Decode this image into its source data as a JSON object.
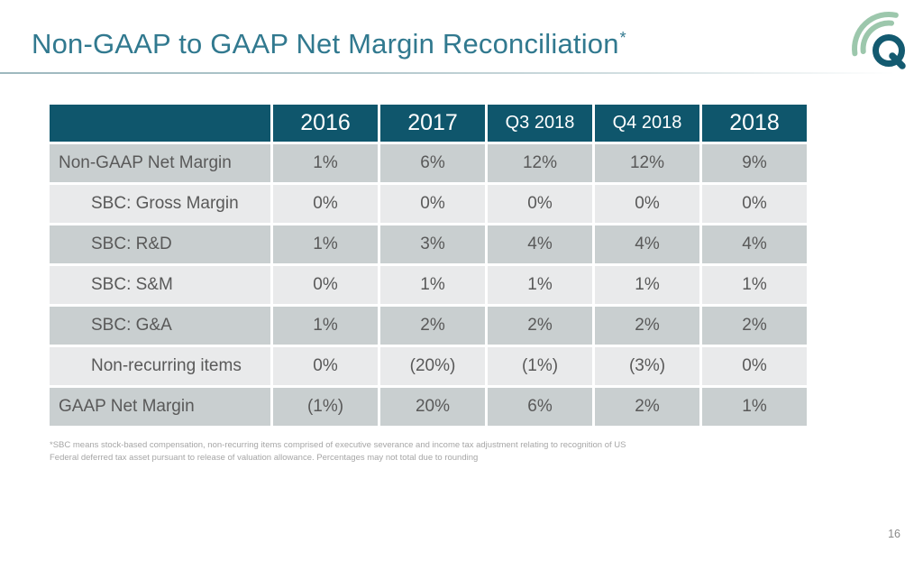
{
  "slide": {
    "title": "Non-GAAP to GAAP Net Margin Reconciliation",
    "title_superscript": "*",
    "page_number": "16",
    "footnote_lines": [
      "*SBC means stock-based compensation, non-recurring items comprised of executive severance and income tax adjustment relating to recognition of US",
      "Federal deferred tax asset pursuant to release of valuation allowance. Percentages may not total due to rounding"
    ],
    "logo": {
      "letter": "Q",
      "description": "letter Q with two radiating signal arcs"
    }
  },
  "colors": {
    "title_text": "#31798f",
    "header_bg": "#0f566c",
    "dark_row": "#c9cfd0",
    "light_row": "#e9eaeb",
    "body_text": "#595959",
    "footnote_text": "#a6a6a6",
    "logo_q_teal": "#135a70",
    "logo_arc_green": "#9cc7ac"
  },
  "chart_data": {
    "type": "table",
    "columns": [
      "",
      "2016",
      "2017",
      "Q3 2018",
      "Q4 2018",
      "2018"
    ],
    "rows": [
      {
        "label": "Non-GAAP Net Margin",
        "indent": false,
        "values": [
          "1%",
          "6%",
          "12%",
          "12%",
          "9%"
        ]
      },
      {
        "label": "SBC: Gross Margin",
        "indent": true,
        "values": [
          "0%",
          "0%",
          "0%",
          "0%",
          "0%"
        ]
      },
      {
        "label": "SBC: R&D",
        "indent": true,
        "values": [
          "1%",
          "3%",
          "4%",
          "4%",
          "4%"
        ]
      },
      {
        "label": "SBC: S&M",
        "indent": true,
        "values": [
          "0%",
          "1%",
          "1%",
          "1%",
          "1%"
        ]
      },
      {
        "label": "SBC: G&A",
        "indent": true,
        "values": [
          "1%",
          "2%",
          "2%",
          "2%",
          "2%"
        ]
      },
      {
        "label": "Non-recurring items",
        "indent": true,
        "values": [
          "0%",
          "(20%)",
          "(1%)",
          "(3%)",
          "0%"
        ]
      },
      {
        "label": "GAAP Net Margin",
        "indent": false,
        "values": [
          "(1%)",
          "20%",
          "6%",
          "2%",
          "1%"
        ]
      }
    ]
  }
}
